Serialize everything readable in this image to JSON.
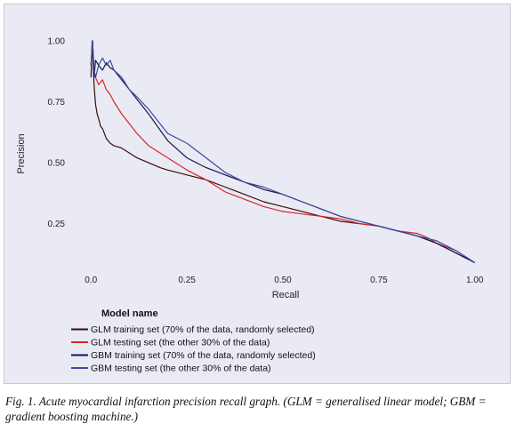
{
  "chart_data": {
    "type": "line",
    "xlabel": "Recall",
    "ylabel": "Precision",
    "xlim": [
      -0.04,
      1.04
    ],
    "ylim": [
      0.07,
      1.04
    ],
    "xticks": [
      "0.0",
      "0.25",
      "0.50",
      "0.75",
      "1.00"
    ],
    "xtick_values": [
      0,
      0.25,
      0.5,
      0.75,
      1.0
    ],
    "yticks": [
      "0.25",
      "0.50",
      "0.75",
      "1.00"
    ],
    "ytick_values": [
      0.25,
      0.5,
      0.75,
      1.0
    ],
    "grid": false,
    "legend_title": "Model name",
    "legend_position": "bottom-left",
    "series": [
      {
        "name": "GLM training set (70% of the data, randomly selected)",
        "color": "#3d0c06",
        "x": [
          0.0,
          0.003,
          0.006,
          0.008,
          0.012,
          0.016,
          0.02,
          0.025,
          0.03,
          0.04,
          0.05,
          0.06,
          0.08,
          0.1,
          0.12,
          0.15,
          0.18,
          0.2,
          0.25,
          0.3,
          0.35,
          0.4,
          0.45,
          0.5,
          0.55,
          0.6,
          0.65,
          0.7,
          0.75,
          0.8,
          0.85,
          0.9,
          0.95,
          1.0
        ],
        "y": [
          0.85,
          1.0,
          0.9,
          0.82,
          0.74,
          0.7,
          0.68,
          0.65,
          0.64,
          0.6,
          0.58,
          0.57,
          0.56,
          0.54,
          0.52,
          0.5,
          0.48,
          0.47,
          0.45,
          0.43,
          0.4,
          0.37,
          0.34,
          0.32,
          0.3,
          0.28,
          0.26,
          0.25,
          0.24,
          0.22,
          0.2,
          0.17,
          0.13,
          0.09
        ]
      },
      {
        "name": "GLM testing set (the other 30% of the data)",
        "color": "#d8262b",
        "x": [
          0.0,
          0.004,
          0.008,
          0.012,
          0.02,
          0.03,
          0.04,
          0.05,
          0.06,
          0.08,
          0.1,
          0.12,
          0.15,
          0.2,
          0.25,
          0.3,
          0.35,
          0.4,
          0.45,
          0.5,
          0.55,
          0.6,
          0.65,
          0.7,
          0.75,
          0.8,
          0.85,
          0.88,
          0.9,
          0.95,
          1.0
        ],
        "y": [
          0.9,
          1.0,
          0.88,
          0.85,
          0.82,
          0.84,
          0.8,
          0.78,
          0.75,
          0.7,
          0.66,
          0.62,
          0.57,
          0.52,
          0.47,
          0.43,
          0.38,
          0.35,
          0.32,
          0.3,
          0.29,
          0.28,
          0.27,
          0.25,
          0.24,
          0.22,
          0.21,
          0.19,
          0.17,
          0.14,
          0.09
        ]
      },
      {
        "name": "GBM training set (70% of the data, randomly selected)",
        "color": "#13144a",
        "x": [
          0.0,
          0.004,
          0.008,
          0.012,
          0.02,
          0.03,
          0.04,
          0.05,
          0.06,
          0.08,
          0.1,
          0.12,
          0.15,
          0.2,
          0.25,
          0.3,
          0.35,
          0.4,
          0.45,
          0.5,
          0.55,
          0.6,
          0.65,
          0.7,
          0.75,
          0.8,
          0.85,
          0.9,
          0.95,
          1.0
        ],
        "y": [
          0.9,
          1.0,
          0.85,
          0.92,
          0.9,
          0.88,
          0.91,
          0.89,
          0.88,
          0.84,
          0.8,
          0.76,
          0.7,
          0.59,
          0.52,
          0.48,
          0.45,
          0.42,
          0.39,
          0.37,
          0.34,
          0.31,
          0.28,
          0.26,
          0.24,
          0.22,
          0.2,
          0.17,
          0.13,
          0.09
        ]
      },
      {
        "name": "GBM testing set (the other 30% of the data)",
        "color": "#3e47a6",
        "x": [
          0.0,
          0.004,
          0.008,
          0.012,
          0.02,
          0.03,
          0.04,
          0.05,
          0.06,
          0.08,
          0.1,
          0.12,
          0.15,
          0.2,
          0.25,
          0.3,
          0.35,
          0.4,
          0.45,
          0.5,
          0.55,
          0.6,
          0.65,
          0.7,
          0.75,
          0.8,
          0.85,
          0.9,
          0.95,
          1.0
        ],
        "y": [
          0.9,
          1.0,
          0.88,
          0.85,
          0.9,
          0.93,
          0.9,
          0.92,
          0.88,
          0.85,
          0.8,
          0.77,
          0.72,
          0.62,
          0.58,
          0.52,
          0.46,
          0.42,
          0.4,
          0.37,
          0.34,
          0.31,
          0.28,
          0.26,
          0.24,
          0.22,
          0.2,
          0.18,
          0.14,
          0.09
        ]
      }
    ]
  },
  "caption": {
    "fig_label": "Fig. 1.",
    "text": " Acute myocardial infarction precision recall graph. (GLM = generalised linear model; GBM = gradient boosting machine.)"
  }
}
